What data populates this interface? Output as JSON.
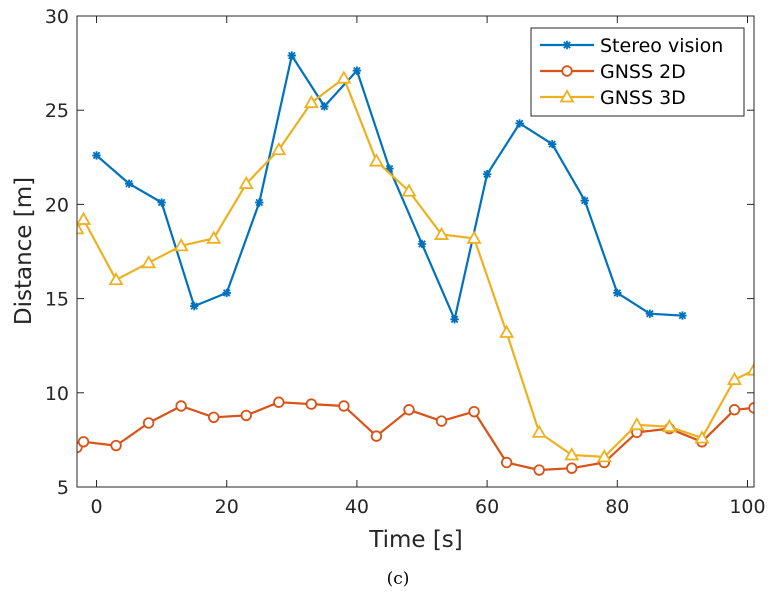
{
  "chart_data": {
    "type": "line",
    "title": "",
    "xlabel": "Time [s]",
    "ylabel": "Distance [m]",
    "xlim": [
      -3,
      101
    ],
    "ylim": [
      5,
      30
    ],
    "xticks": [
      "0",
      "20",
      "40",
      "60",
      "80",
      "100"
    ],
    "yticks": [
      "5",
      "10",
      "15",
      "20",
      "25",
      "30"
    ],
    "grid": false,
    "legend_position": "top-right",
    "caption": "(c)",
    "series": [
      {
        "name": "Stereo vision",
        "color": "#0072bd",
        "marker": "asterisk",
        "x": [
          0,
          5,
          10,
          15,
          20,
          25,
          30,
          35,
          40,
          45,
          50,
          55,
          60,
          65,
          70,
          75,
          80,
          85,
          90
        ],
        "y": [
          22.6,
          21.1,
          20.1,
          14.6,
          15.3,
          20.1,
          27.9,
          25.2,
          27.1,
          21.9,
          17.9,
          13.9,
          21.6,
          24.3,
          23.2,
          20.2,
          15.3,
          14.2,
          14.1
        ]
      },
      {
        "name": "GNSS 2D",
        "color": "#d95319",
        "marker": "circle",
        "x": [
          -3,
          -2,
          3,
          8,
          13,
          18,
          23,
          28,
          33,
          38,
          43,
          48,
          53,
          58,
          63,
          68,
          73,
          78,
          83,
          88,
          93,
          98,
          101
        ],
        "y": [
          7.1,
          7.4,
          7.2,
          8.4,
          9.3,
          8.7,
          8.8,
          9.5,
          9.4,
          9.3,
          7.7,
          9.1,
          8.5,
          9.0,
          6.3,
          5.9,
          6.0,
          6.3,
          7.9,
          8.1,
          7.4,
          9.1,
          9.2
        ]
      },
      {
        "name": "GNSS 3D",
        "color": "#edb120",
        "marker": "triangle",
        "x": [
          -3,
          -2,
          3,
          8,
          13,
          18,
          23,
          28,
          33,
          38,
          43,
          48,
          53,
          58,
          63,
          68,
          73,
          78,
          83,
          88,
          93,
          98,
          101
        ],
        "y": [
          18.7,
          19.2,
          16.0,
          16.9,
          17.8,
          18.2,
          21.1,
          22.9,
          25.4,
          26.7,
          22.3,
          20.7,
          18.4,
          18.2,
          13.2,
          7.9,
          6.7,
          6.6,
          8.3,
          8.2,
          7.6,
          10.7,
          11.2
        ]
      }
    ]
  }
}
